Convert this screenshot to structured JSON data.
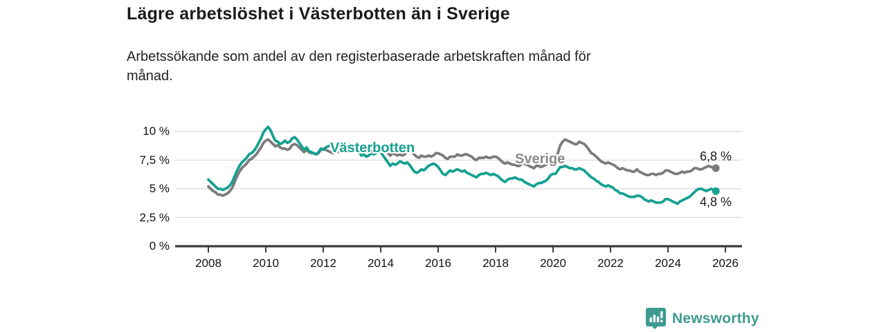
{
  "header": {
    "title": "Lägre arbetslöshet i Västerbotten än i Sverige",
    "subtitle": "Arbetssökande som andel av den registerbaserade arbetskraften månad för månad."
  },
  "chart_data": {
    "type": "line",
    "title": "Lägre arbetslöshet i Västerbotten än i Sverige",
    "subtitle": "Arbetssökande som andel av den registerbaserade arbetskraften månad för månad.",
    "xlabel": "",
    "ylabel": "",
    "x_unit": "year-month",
    "x_start": "2008-01",
    "x_end": "2025-09",
    "frequency": "monthly",
    "ylim": [
      0,
      10.6
    ],
    "grid": "horizontal",
    "y_ticks": [
      {
        "value": 0,
        "label": "0 %"
      },
      {
        "value": 2.5,
        "label": "2,5 %"
      },
      {
        "value": 5,
        "label": "5 %"
      },
      {
        "value": 7.5,
        "label": "7,5 %"
      },
      {
        "value": 10,
        "label": "10 %"
      }
    ],
    "x_ticks": [
      {
        "value": 2008,
        "label": "2008"
      },
      {
        "value": 2010,
        "label": "2010"
      },
      {
        "value": 2012,
        "label": "2012"
      },
      {
        "value": 2014,
        "label": "2014"
      },
      {
        "value": 2016,
        "label": "2016"
      },
      {
        "value": 2018,
        "label": "2018"
      },
      {
        "value": 2020,
        "label": "2020"
      },
      {
        "value": 2022,
        "label": "2022"
      },
      {
        "value": 2024,
        "label": "2024"
      },
      {
        "value": 2026,
        "label": "2026"
      }
    ],
    "series": [
      {
        "name": "Västerbotten",
        "color": "#16a191",
        "end_label": "4,8 %",
        "end_value": 4.8,
        "values": [
          5.8,
          5.6,
          5.4,
          5.2,
          5.0,
          5.0,
          4.9,
          5.0,
          5.1,
          5.3,
          5.6,
          6.1,
          6.6,
          7.0,
          7.3,
          7.5,
          7.7,
          8.0,
          8.1,
          8.3,
          8.6,
          9.0,
          9.4,
          9.9,
          10.2,
          10.4,
          10.1,
          9.6,
          9.2,
          9.1,
          8.9,
          9.0,
          9.2,
          9.0,
          9.1,
          9.4,
          9.5,
          9.3,
          9.0,
          8.7,
          8.4,
          8.6,
          8.3,
          8.2,
          8.1,
          8.0,
          8.2,
          8.5,
          8.4,
          8.6,
          8.7,
          8.8,
          8.6,
          8.7,
          8.5,
          8.6,
          8.7,
          8.6,
          8.7,
          8.9,
          8.8,
          8.7,
          8.5,
          8.2,
          7.9,
          8.0,
          7.8,
          7.9,
          8.1,
          8.0,
          8.1,
          8.3,
          8.2,
          7.9,
          7.6,
          7.3,
          7.0,
          7.2,
          7.1,
          7.2,
          7.4,
          7.3,
          7.2,
          7.3,
          7.1,
          6.8,
          6.5,
          6.4,
          6.5,
          6.7,
          6.6,
          6.8,
          7.0,
          7.1,
          7.2,
          7.1,
          6.9,
          6.6,
          6.3,
          6.2,
          6.4,
          6.6,
          6.5,
          6.6,
          6.7,
          6.6,
          6.5,
          6.6,
          6.4,
          6.3,
          6.2,
          6.1,
          6.0,
          6.2,
          6.3,
          6.3,
          6.4,
          6.3,
          6.2,
          6.3,
          6.2,
          6.1,
          5.9,
          5.7,
          5.6,
          5.8,
          5.9,
          5.9,
          6.0,
          5.9,
          5.8,
          5.8,
          5.6,
          5.5,
          5.4,
          5.3,
          5.2,
          5.4,
          5.5,
          5.5,
          5.6,
          5.7,
          5.9,
          6.2,
          6.3,
          6.3,
          6.6,
          6.9,
          6.9,
          7.0,
          6.9,
          6.8,
          6.8,
          6.7,
          6.7,
          6.8,
          6.7,
          6.6,
          6.4,
          6.2,
          6.0,
          5.9,
          5.7,
          5.6,
          5.4,
          5.3,
          5.2,
          5.3,
          5.2,
          5.1,
          4.9,
          4.8,
          4.6,
          4.6,
          4.5,
          4.4,
          4.3,
          4.3,
          4.3,
          4.4,
          4.4,
          4.3,
          4.1,
          4.0,
          3.9,
          4.0,
          3.9,
          3.8,
          3.8,
          3.8,
          3.9,
          4.1,
          4.1,
          4.0,
          3.9,
          3.8,
          3.7,
          3.9,
          4.0,
          4.1,
          4.2,
          4.3,
          4.5,
          4.7,
          4.9,
          5.0,
          5.0,
          4.9,
          4.8,
          4.9,
          5.0,
          4.9,
          4.8
        ]
      },
      {
        "name": "Sverige",
        "color": "#7b7b7b",
        "end_label": "6,8 %",
        "end_value": 6.8,
        "values": [
          5.2,
          5.0,
          4.8,
          4.7,
          4.5,
          4.5,
          4.4,
          4.5,
          4.6,
          4.8,
          5.1,
          5.6,
          6.1,
          6.5,
          6.8,
          7.0,
          7.2,
          7.5,
          7.6,
          7.8,
          8.0,
          8.3,
          8.6,
          9.0,
          9.2,
          9.3,
          9.1,
          8.9,
          8.7,
          8.8,
          8.6,
          8.5,
          8.5,
          8.4,
          8.5,
          8.8,
          8.9,
          8.8,
          8.6,
          8.4,
          8.2,
          8.4,
          8.2,
          8.1,
          8.1,
          8.0,
          8.1,
          8.4,
          8.5,
          8.4,
          8.3,
          8.2,
          8.1,
          8.3,
          8.2,
          8.2,
          8.3,
          8.4,
          8.6,
          8.8,
          8.8,
          8.7,
          8.6,
          8.4,
          8.3,
          8.5,
          8.4,
          8.3,
          8.3,
          8.2,
          8.3,
          8.5,
          8.6,
          8.5,
          8.3,
          8.1,
          7.9,
          8.1,
          8.0,
          7.9,
          8.0,
          7.9,
          8.0,
          8.2,
          8.3,
          8.2,
          8.0,
          7.8,
          7.7,
          7.9,
          7.8,
          7.8,
          7.9,
          7.8,
          7.9,
          8.1,
          8.1,
          8.0,
          7.9,
          7.7,
          7.6,
          7.8,
          7.8,
          7.8,
          8.0,
          7.9,
          7.9,
          8.0,
          8.0,
          7.9,
          7.8,
          7.6,
          7.5,
          7.7,
          7.7,
          7.7,
          7.8,
          7.7,
          7.7,
          7.8,
          7.8,
          7.7,
          7.5,
          7.3,
          7.2,
          7.3,
          7.2,
          7.1,
          7.1,
          7.0,
          7.0,
          7.2,
          7.2,
          7.1,
          7.0,
          6.9,
          6.8,
          7.0,
          7.0,
          6.9,
          7.0,
          7.1,
          7.3,
          7.6,
          7.7,
          7.6,
          8.1,
          8.8,
          9.1,
          9.3,
          9.2,
          9.1,
          9.0,
          8.9,
          8.9,
          9.1,
          9.0,
          8.9,
          8.7,
          8.4,
          8.1,
          8.0,
          7.8,
          7.6,
          7.4,
          7.3,
          7.2,
          7.3,
          7.2,
          7.1,
          7.0,
          6.8,
          6.7,
          6.8,
          6.7,
          6.6,
          6.6,
          6.5,
          6.5,
          6.7,
          6.5,
          6.4,
          6.3,
          6.2,
          6.2,
          6.3,
          6.3,
          6.2,
          6.3,
          6.3,
          6.4,
          6.6,
          6.6,
          6.5,
          6.4,
          6.3,
          6.3,
          6.4,
          6.5,
          6.4,
          6.5,
          6.5,
          6.6,
          6.8,
          6.8,
          6.7,
          6.7,
          6.8,
          6.9,
          7.0,
          6.9,
          6.9,
          6.8
        ]
      }
    ]
  },
  "colors": {
    "vasterbotten": "#16a191",
    "sverige_line": "#7b7b7b",
    "sverige_label": "#8a8a8a",
    "axis": "#3c3c3c",
    "gridline": "#dadada",
    "text": "#1a1a1a",
    "brand": "#3d9b8f"
  },
  "footer": {
    "brand": "Newsworthy"
  }
}
